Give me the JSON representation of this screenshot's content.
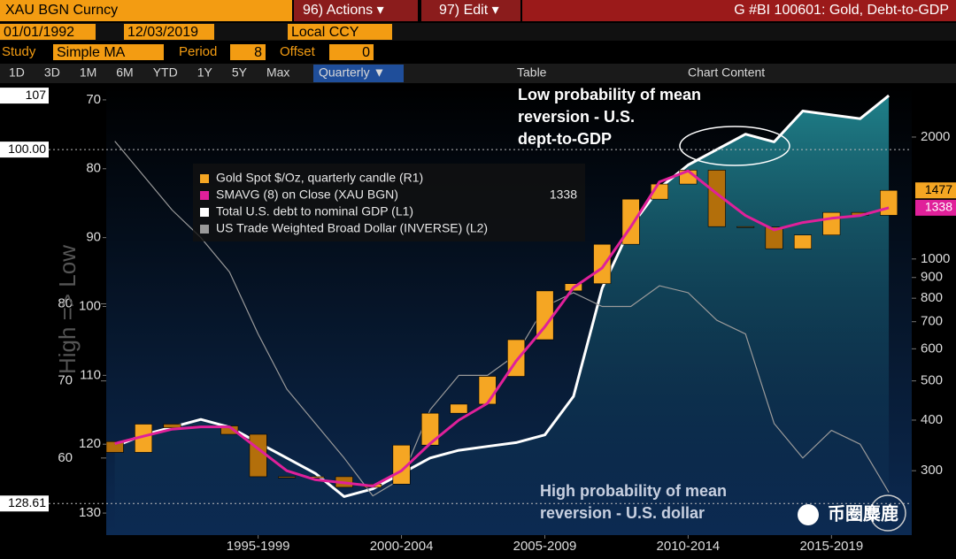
{
  "toolbar": {
    "security": "XAU BGN Curncy",
    "actions": "96) Actions ▾",
    "edit": "97) Edit ▾",
    "title": "G #BI 100601: Gold, Debt-to-GDP",
    "start_date": "01/01/1992",
    "end_date": "12/03/2019",
    "currency": "Local CCY",
    "study_label": "Study",
    "study": "Simple MA",
    "period_label": "Period",
    "period": 8,
    "offset_label": "Offset",
    "offset": 0,
    "ranges": [
      "1D",
      "3D",
      "1M",
      "6M",
      "YTD",
      "1Y",
      "5Y",
      "Max"
    ],
    "frequency": "Quarterly ▼",
    "table": "Table",
    "chart_content": "Chart Content"
  },
  "watermark": "币圈麋鹿",
  "chart_data": {
    "type": "candlestick",
    "axis_title": "High => Low",
    "annotations": [
      [
        "Low probability of mean",
        "reversion - U.S.",
        "dept-to-GDP"
      ],
      [
        "High probability of mean",
        "reversion - U.S. dollar"
      ]
    ],
    "x": [
      1992.5,
      1993.5,
      1994.5,
      1995.5,
      1996.5,
      1997.5,
      1998.5,
      1999.5,
      2000.5,
      2001.5,
      2002.5,
      2003.5,
      2004.5,
      2005.5,
      2006.5,
      2007.5,
      2008.5,
      2009.5,
      2010.5,
      2011.5,
      2012.5,
      2013.5,
      2014.5,
      2015.5,
      2016.5,
      2017.5,
      2018.5,
      2019.5
    ],
    "xlim": [
      1992.2,
      2020.3
    ],
    "xticks": [
      {
        "value": 1997.5,
        "label": "1995-1999"
      },
      {
        "value": 2002.5,
        "label": "2000-2004"
      },
      {
        "value": 2007.5,
        "label": "2005-2009"
      },
      {
        "value": 2012.5,
        "label": "2010-2014"
      },
      {
        "value": 2017.5,
        "label": "2015-2019"
      }
    ],
    "ylim": [
      50,
      108.5
    ],
    "yticks": [
      60,
      70,
      80
    ],
    "y2lim": [
      133.2,
      67.7
    ],
    "y2ticks": [
      70,
      80,
      90,
      100,
      110,
      120,
      130
    ],
    "y3lim": [
      208,
      2704
    ],
    "y3log": true,
    "y3ticks": [
      300,
      400,
      500,
      600,
      700,
      800,
      900,
      1000,
      2000
    ],
    "hlines": [
      {
        "value": 100,
        "label": "100.00",
        "axis": "y"
      },
      {
        "value": 128.61,
        "label": "128.61",
        "axis": "y2"
      }
    ],
    "series": [
      {
        "name": "Gold Spot $/Oz, quarterly candle (R1)",
        "color": "#f5a623",
        "axis": "y3",
        "open": [
          354,
          333,
          391,
          383,
          387,
          369,
          290,
          288,
          290,
          273,
          278,
          347,
          416,
          438,
          513,
          632,
          834,
          869,
          1087,
          1405,
          1531,
          1657,
          1202,
          1199,
          1060,
          1146,
          1303,
          1282
        ],
        "close": [
          333,
          391,
          383,
          387,
          369,
          290,
          288,
          290,
          273,
          278,
          347,
          416,
          438,
          513,
          632,
          834,
          869,
          1087,
          1405,
          1531,
          1657,
          1202,
          1199,
          1060,
          1146,
          1303,
          1282,
          1477
        ]
      },
      {
        "name": "SMAVG (8)  on Close (XAU BGN)",
        "color": "#e0209a",
        "axis": "y3",
        "values": [
          350,
          365,
          380,
          385,
          385,
          340,
          300,
          285,
          280,
          275,
          300,
          350,
          400,
          440,
          560,
          680,
          850,
          950,
          1200,
          1550,
          1650,
          1450,
          1280,
          1180,
          1230,
          1260,
          1280,
          1338
        ]
      },
      {
        "name": "Total U.S. debt to nominal GDP (L1)",
        "color": "#ffffff",
        "axis": "y",
        "values": [
          61.5,
          63,
          64,
          65,
          64,
          62,
          60,
          58,
          55,
          56,
          58,
          60,
          61,
          61.5,
          62,
          63,
          68,
          82,
          90,
          95,
          98,
          100,
          102,
          101,
          105,
          104.5,
          104,
          107
        ]
      },
      {
        "name": "US Trade Weighted Broad Dollar (INVERSE) (L2)",
        "color": "#9a9a9a",
        "axis": "y2",
        "values": [
          76,
          81,
          86,
          90,
          95,
          104,
          112,
          117,
          122,
          127.5,
          125,
          115,
          110,
          110,
          107,
          100,
          98,
          100,
          100,
          97,
          98,
          102,
          104,
          117,
          122,
          118,
          120,
          127
        ]
      }
    ]
  }
}
